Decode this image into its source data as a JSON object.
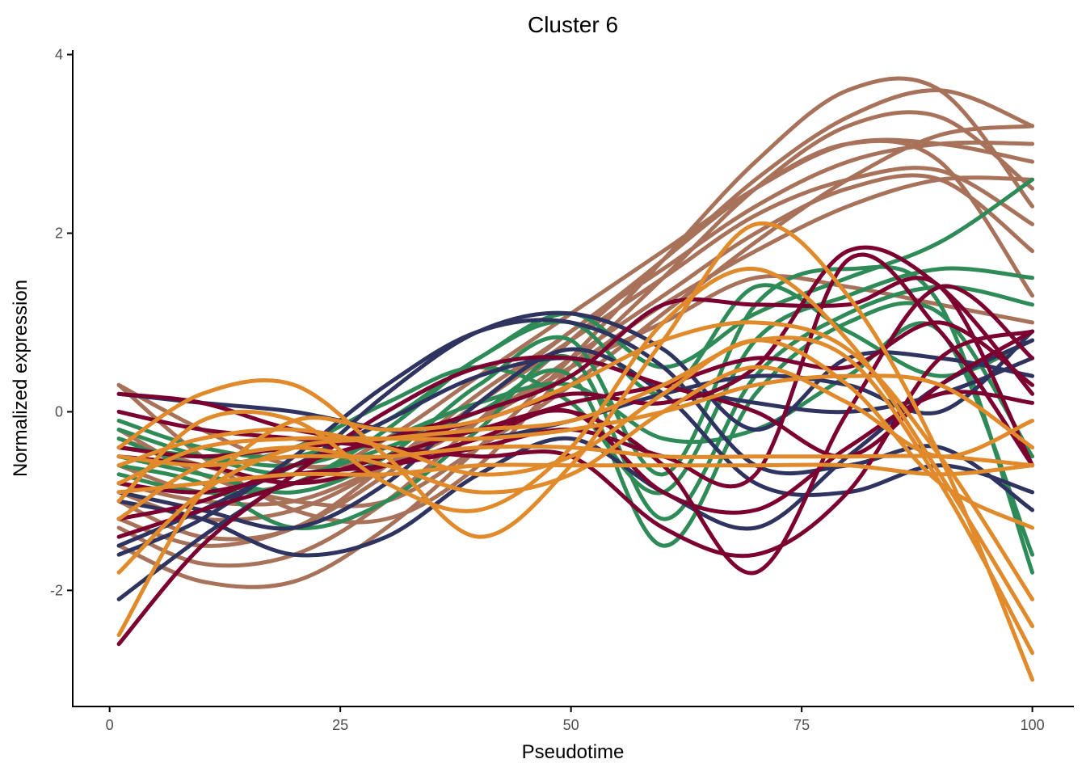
{
  "chart_data": {
    "type": "line",
    "title": "Cluster 6",
    "xlabel": "Pseudotime",
    "ylabel": "Normalized expression",
    "xlim": [
      -4,
      104.5
    ],
    "ylim": [
      -3.3,
      4.05
    ],
    "xticks": [
      0,
      25,
      50,
      75,
      100
    ],
    "xtick_labels": [
      "0",
      "25",
      "50",
      "75",
      "100"
    ],
    "yticks": [
      -2,
      0,
      2,
      4
    ],
    "ytick_labels": [
      "-2",
      "0",
      "2",
      "4"
    ],
    "grid": false,
    "legend": "none",
    "colors": {
      "dark_red": "#7b0030",
      "navy": "#2e3360",
      "green": "#2e8b57",
      "orange": "#e08a2b",
      "brown": "#a8725a"
    },
    "series": [
      {
        "color": "#a8725a",
        "x": [
          1,
          10,
          20,
          30,
          40,
          50,
          60,
          70,
          80,
          90,
          100
        ],
        "y": [
          -1.0,
          -1.4,
          -1.3,
          -0.6,
          0.2,
          0.9,
          1.7,
          2.6,
          3.3,
          3.6,
          3.2
        ]
      },
      {
        "color": "#a8725a",
        "x": [
          1,
          10,
          20,
          30,
          40,
          50,
          60,
          70,
          80,
          90,
          100
        ],
        "y": [
          -1.5,
          -1.9,
          -1.9,
          -1.3,
          -0.4,
          0.6,
          1.7,
          2.8,
          3.6,
          3.6,
          2.3
        ]
      },
      {
        "color": "#a8725a",
        "x": [
          1,
          10,
          20,
          30,
          40,
          50,
          60,
          70,
          80,
          90,
          100
        ],
        "y": [
          -0.6,
          -0.9,
          -0.8,
          -0.3,
          0.4,
          1.1,
          1.8,
          2.5,
          3.0,
          3.0,
          2.8
        ]
      },
      {
        "color": "#a8725a",
        "x": [
          1,
          10,
          20,
          30,
          40,
          50,
          60,
          70,
          80,
          90,
          100
        ],
        "y": [
          -1.2,
          -1.5,
          -1.3,
          -0.7,
          0.1,
          0.9,
          1.6,
          2.3,
          2.8,
          3.0,
          3.0
        ]
      },
      {
        "color": "#a8725a",
        "x": [
          1,
          10,
          20,
          30,
          40,
          50,
          60,
          70,
          80,
          90,
          100
        ],
        "y": [
          0.3,
          -0.5,
          -1.1,
          -1.2,
          -0.6,
          0.5,
          1.5,
          2.5,
          3.2,
          3.3,
          2.5
        ]
      },
      {
        "color": "#a8725a",
        "x": [
          1,
          10,
          20,
          30,
          40,
          50,
          60,
          70,
          80,
          90,
          100
        ],
        "y": [
          -0.9,
          -1.2,
          -1.1,
          -0.6,
          0.1,
          0.8,
          1.5,
          2.2,
          2.6,
          2.7,
          2.1
        ]
      },
      {
        "color": "#a8725a",
        "x": [
          1,
          10,
          20,
          30,
          40,
          50,
          60,
          70,
          80,
          90,
          100
        ],
        "y": [
          -0.3,
          -0.6,
          -0.8,
          -0.6,
          -0.1,
          0.6,
          1.3,
          2.0,
          2.5,
          2.6,
          1.8
        ]
      },
      {
        "color": "#a8725a",
        "x": [
          1,
          10,
          20,
          30,
          40,
          50,
          60,
          70,
          80,
          90,
          100
        ],
        "y": [
          -1.3,
          -1.7,
          -1.6,
          -1.0,
          -0.1,
          0.8,
          1.7,
          2.5,
          3.0,
          2.8,
          1.3
        ]
      },
      {
        "color": "#a8725a",
        "x": [
          1,
          10,
          20,
          30,
          40,
          50,
          60,
          70,
          80,
          90,
          100
        ],
        "y": [
          0.3,
          -0.2,
          -0.6,
          -0.5,
          -0.1,
          0.5,
          1.0,
          1.5,
          1.4,
          1.2,
          1.0
        ]
      },
      {
        "color": "#a8725a",
        "x": [
          1,
          10,
          20,
          30,
          40,
          50,
          60,
          70,
          80,
          90,
          100
        ],
        "y": [
          -0.2,
          -0.7,
          -1.0,
          -1.0,
          -0.4,
          0.3,
          1.1,
          1.9,
          2.6,
          3.1,
          3.2
        ]
      },
      {
        "color": "#a8725a",
        "x": [
          1,
          10,
          20,
          30,
          40,
          50,
          60,
          70,
          80,
          90,
          100
        ],
        "y": [
          -0.8,
          -1.0,
          -1.0,
          -0.6,
          -0.1,
          0.5,
          1.2,
          1.8,
          2.3,
          2.6,
          2.6
        ]
      },
      {
        "color": "#2e8b57",
        "x": [
          1,
          10,
          20,
          30,
          40,
          50,
          60,
          70,
          80,
          90,
          100
        ],
        "y": [
          -0.1,
          -0.4,
          -0.5,
          -0.1,
          0.6,
          1.1,
          0.5,
          1.1,
          1.5,
          1.9,
          2.6
        ]
      },
      {
        "color": "#2e8b57",
        "x": [
          1,
          10,
          20,
          30,
          40,
          50,
          60,
          70,
          80,
          90,
          100
        ],
        "y": [
          -0.5,
          -0.7,
          -0.9,
          -0.5,
          0.3,
          0.8,
          -0.7,
          1.2,
          1.6,
          1.2,
          -1.8
        ]
      },
      {
        "color": "#2e8b57",
        "x": [
          1,
          10,
          20,
          30,
          40,
          50,
          60,
          70,
          80,
          90,
          100
        ],
        "y": [
          -0.3,
          -0.6,
          -0.4,
          0.1,
          0.5,
          0.1,
          -0.9,
          0.8,
          1.3,
          1.6,
          1.5
        ]
      },
      {
        "color": "#2e8b57",
        "x": [
          1,
          10,
          20,
          30,
          40,
          50,
          60,
          70,
          80,
          90,
          100
        ],
        "y": [
          -0.6,
          -0.8,
          -1.3,
          -1.0,
          -0.2,
          0.6,
          -1.2,
          0.4,
          1.1,
          1.4,
          1.2
        ]
      },
      {
        "color": "#2e8b57",
        "x": [
          1,
          10,
          20,
          30,
          40,
          50,
          60,
          70,
          80,
          90,
          100
        ],
        "y": [
          -0.4,
          -0.5,
          -0.6,
          -0.3,
          0.1,
          0.3,
          -0.3,
          -0.2,
          0.4,
          0.9,
          -1.6
        ]
      },
      {
        "color": "#2e8b57",
        "x": [
          1,
          10,
          20,
          30,
          40,
          50,
          60,
          70,
          80,
          90,
          100
        ],
        "y": [
          -0.7,
          -0.9,
          -0.8,
          -0.2,
          0.6,
          1.0,
          0.2,
          1.4,
          0.9,
          0.4,
          0.8
        ]
      },
      {
        "color": "#2e8b57",
        "x": [
          1,
          10,
          20,
          30,
          40,
          50,
          60,
          70,
          80,
          90,
          100
        ],
        "y": [
          -0.2,
          -0.5,
          -0.7,
          -0.4,
          0.0,
          0.4,
          -1.5,
          0.2,
          1.0,
          1.1,
          -0.5
        ]
      },
      {
        "color": "#2e3360",
        "x": [
          1,
          10,
          20,
          30,
          40,
          50,
          60,
          70,
          80,
          90,
          100
        ],
        "y": [
          -2.1,
          -1.4,
          -0.7,
          0.2,
          0.9,
          1.1,
          0.7,
          -0.2,
          0.6,
          0.6,
          0.4
        ]
      },
      {
        "color": "#2e3360",
        "x": [
          1,
          10,
          20,
          30,
          40,
          50,
          60,
          70,
          80,
          90,
          100
        ],
        "y": [
          -1.6,
          -1.2,
          -0.5,
          0.3,
          0.9,
          1.0,
          0.5,
          -0.6,
          -0.6,
          -0.4,
          -1.1
        ]
      },
      {
        "color": "#2e3360",
        "x": [
          1,
          10,
          20,
          30,
          40,
          50,
          60,
          70,
          80,
          90,
          100
        ],
        "y": [
          0.2,
          0.1,
          0.0,
          -0.2,
          -0.3,
          -0.1,
          0.2,
          0.4,
          0.3,
          0.0,
          0.9
        ]
      },
      {
        "color": "#2e3360",
        "x": [
          1,
          10,
          20,
          30,
          40,
          50,
          60,
          70,
          80,
          90,
          100
        ],
        "y": [
          -1.0,
          -1.2,
          -1.6,
          -1.4,
          -0.7,
          -0.3,
          -0.9,
          -1.3,
          -0.5,
          0.3,
          0.8
        ]
      },
      {
        "color": "#2e3360",
        "x": [
          1,
          10,
          20,
          30,
          40,
          50,
          60,
          70,
          80,
          90,
          100
        ],
        "y": [
          -0.9,
          -1.1,
          -1.3,
          -0.8,
          0.1,
          0.7,
          0.2,
          -0.8,
          -0.9,
          -0.6,
          -0.9
        ]
      },
      {
        "color": "#2e3360",
        "x": [
          1,
          10,
          20,
          30,
          40,
          50,
          60,
          70,
          80,
          90,
          100
        ],
        "y": [
          -1.5,
          -1.1,
          -0.6,
          -0.1,
          0.4,
          0.6,
          0.3,
          0.1,
          0.0,
          0.2,
          0.6
        ]
      },
      {
        "color": "#7b0030",
        "x": [
          1,
          10,
          20,
          30,
          40,
          50,
          60,
          70,
          80,
          90,
          100
        ],
        "y": [
          -2.6,
          -1.5,
          -0.7,
          0.0,
          0.5,
          0.6,
          0.3,
          0.0,
          -0.5,
          0.3,
          0.9
        ]
      },
      {
        "color": "#7b0030",
        "x": [
          1,
          10,
          20,
          30,
          40,
          50,
          60,
          70,
          80,
          90,
          100
        ],
        "y": [
          0.2,
          0.1,
          -0.2,
          -0.3,
          -0.1,
          0.2,
          0.1,
          0.5,
          1.8,
          1.4,
          0.2
        ]
      },
      {
        "color": "#7b0030",
        "x": [
          1,
          10,
          20,
          30,
          40,
          50,
          60,
          70,
          80,
          90,
          100
        ],
        "y": [
          -1.2,
          -1.0,
          -0.6,
          -0.3,
          0.0,
          0.4,
          1.2,
          1.2,
          1.2,
          1.4,
          -0.6
        ]
      },
      {
        "color": "#7b0030",
        "x": [
          1,
          10,
          20,
          30,
          40,
          50,
          60,
          70,
          80,
          90,
          100
        ],
        "y": [
          -0.5,
          -0.6,
          -0.8,
          -0.6,
          -0.3,
          0.0,
          -0.9,
          -1.1,
          -0.4,
          0.2,
          0.1
        ]
      },
      {
        "color": "#7b0030",
        "x": [
          1,
          10,
          20,
          30,
          40,
          50,
          60,
          70,
          80,
          90,
          100
        ],
        "y": [
          0.0,
          -0.2,
          -0.3,
          -0.4,
          -0.5,
          -0.5,
          -1.3,
          -1.6,
          -0.9,
          0.6,
          0.9
        ]
      },
      {
        "color": "#7b0030",
        "x": [
          1,
          10,
          20,
          30,
          40,
          50,
          60,
          70,
          80,
          90,
          100
        ],
        "y": [
          -1.4,
          -1.1,
          -0.8,
          -0.5,
          -0.2,
          0.0,
          -0.6,
          -1.8,
          0.0,
          1.4,
          0.6
        ]
      },
      {
        "color": "#7b0030",
        "x": [
          1,
          10,
          20,
          30,
          40,
          50,
          60,
          70,
          80,
          90,
          100
        ],
        "y": [
          -0.4,
          -0.5,
          -0.4,
          -0.3,
          -0.2,
          0.1,
          0.3,
          0.6,
          0.5,
          1.0,
          0.3
        ]
      },
      {
        "color": "#7b0030",
        "x": [
          1,
          10,
          20,
          30,
          40,
          50,
          60,
          70,
          80,
          90,
          100
        ],
        "y": [
          -0.8,
          -0.9,
          -0.7,
          -0.6,
          -0.4,
          -0.2,
          -0.5,
          -0.7,
          1.7,
          0.9,
          -0.6
        ]
      },
      {
        "color": "#e08a2b",
        "x": [
          1,
          10,
          20,
          30,
          40,
          50,
          60,
          70,
          80,
          90,
          100
        ],
        "y": [
          -2.5,
          -0.9,
          -0.1,
          -0.2,
          -0.1,
          0.3,
          0.8,
          1.0,
          0.7,
          -0.5,
          -2.1
        ]
      },
      {
        "color": "#e08a2b",
        "x": [
          1,
          10,
          20,
          30,
          40,
          50,
          60,
          70,
          80,
          90,
          100
        ],
        "y": [
          -0.4,
          0.2,
          0.3,
          -0.5,
          -1.4,
          -0.6,
          0.8,
          2.1,
          1.3,
          -0.5,
          -3.0
        ]
      },
      {
        "color": "#e08a2b",
        "x": [
          1,
          10,
          20,
          30,
          40,
          50,
          60,
          70,
          80,
          90,
          100
        ],
        "y": [
          -1.8,
          -0.9,
          -0.4,
          -0.3,
          -0.2,
          -0.1,
          0.3,
          0.8,
          0.6,
          -0.8,
          -2.7
        ]
      },
      {
        "color": "#e08a2b",
        "x": [
          1,
          10,
          20,
          30,
          40,
          50,
          60,
          70,
          80,
          90,
          100
        ],
        "y": [
          -0.5,
          -0.6,
          -0.5,
          -0.5,
          -0.4,
          -0.4,
          -0.5,
          -0.5,
          -0.5,
          -0.5,
          -0.6
        ]
      },
      {
        "color": "#e08a2b",
        "x": [
          1,
          10,
          20,
          30,
          40,
          50,
          60,
          70,
          80,
          90,
          100
        ],
        "y": [
          -0.9,
          -0.8,
          -0.7,
          -0.7,
          -0.6,
          -0.6,
          -0.6,
          -0.6,
          -0.6,
          -0.7,
          -0.6
        ]
      },
      {
        "color": "#e08a2b",
        "x": [
          1,
          10,
          20,
          30,
          40,
          50,
          60,
          70,
          80,
          90,
          100
        ],
        "y": [
          -1.0,
          -0.1,
          -0.1,
          -0.8,
          -1.1,
          -0.4,
          1.0,
          1.6,
          0.8,
          -0.7,
          -2.4
        ]
      },
      {
        "color": "#e08a2b",
        "x": [
          1,
          10,
          20,
          30,
          40,
          50,
          60,
          70,
          80,
          90,
          100
        ],
        "y": [
          -0.6,
          -0.3,
          -0.2,
          -0.4,
          -0.7,
          -0.5,
          0.2,
          0.8,
          0.3,
          -0.8,
          -1.3
        ]
      },
      {
        "color": "#e08a2b",
        "x": [
          1,
          10,
          20,
          30,
          40,
          50,
          60,
          70,
          80,
          90,
          100
        ],
        "y": [
          -1.2,
          -0.6,
          -0.4,
          -0.6,
          -0.9,
          -0.7,
          0.0,
          0.5,
          0.1,
          -0.5,
          -0.1
        ]
      },
      {
        "color": "#e08a2b",
        "x": [
          1,
          10,
          20,
          30,
          40,
          50,
          60,
          70,
          80,
          90,
          100
        ],
        "y": [
          -0.8,
          -0.4,
          -0.3,
          -0.3,
          -0.3,
          -0.2,
          0.0,
          0.3,
          0.4,
          0.3,
          -0.4
        ]
      }
    ]
  }
}
